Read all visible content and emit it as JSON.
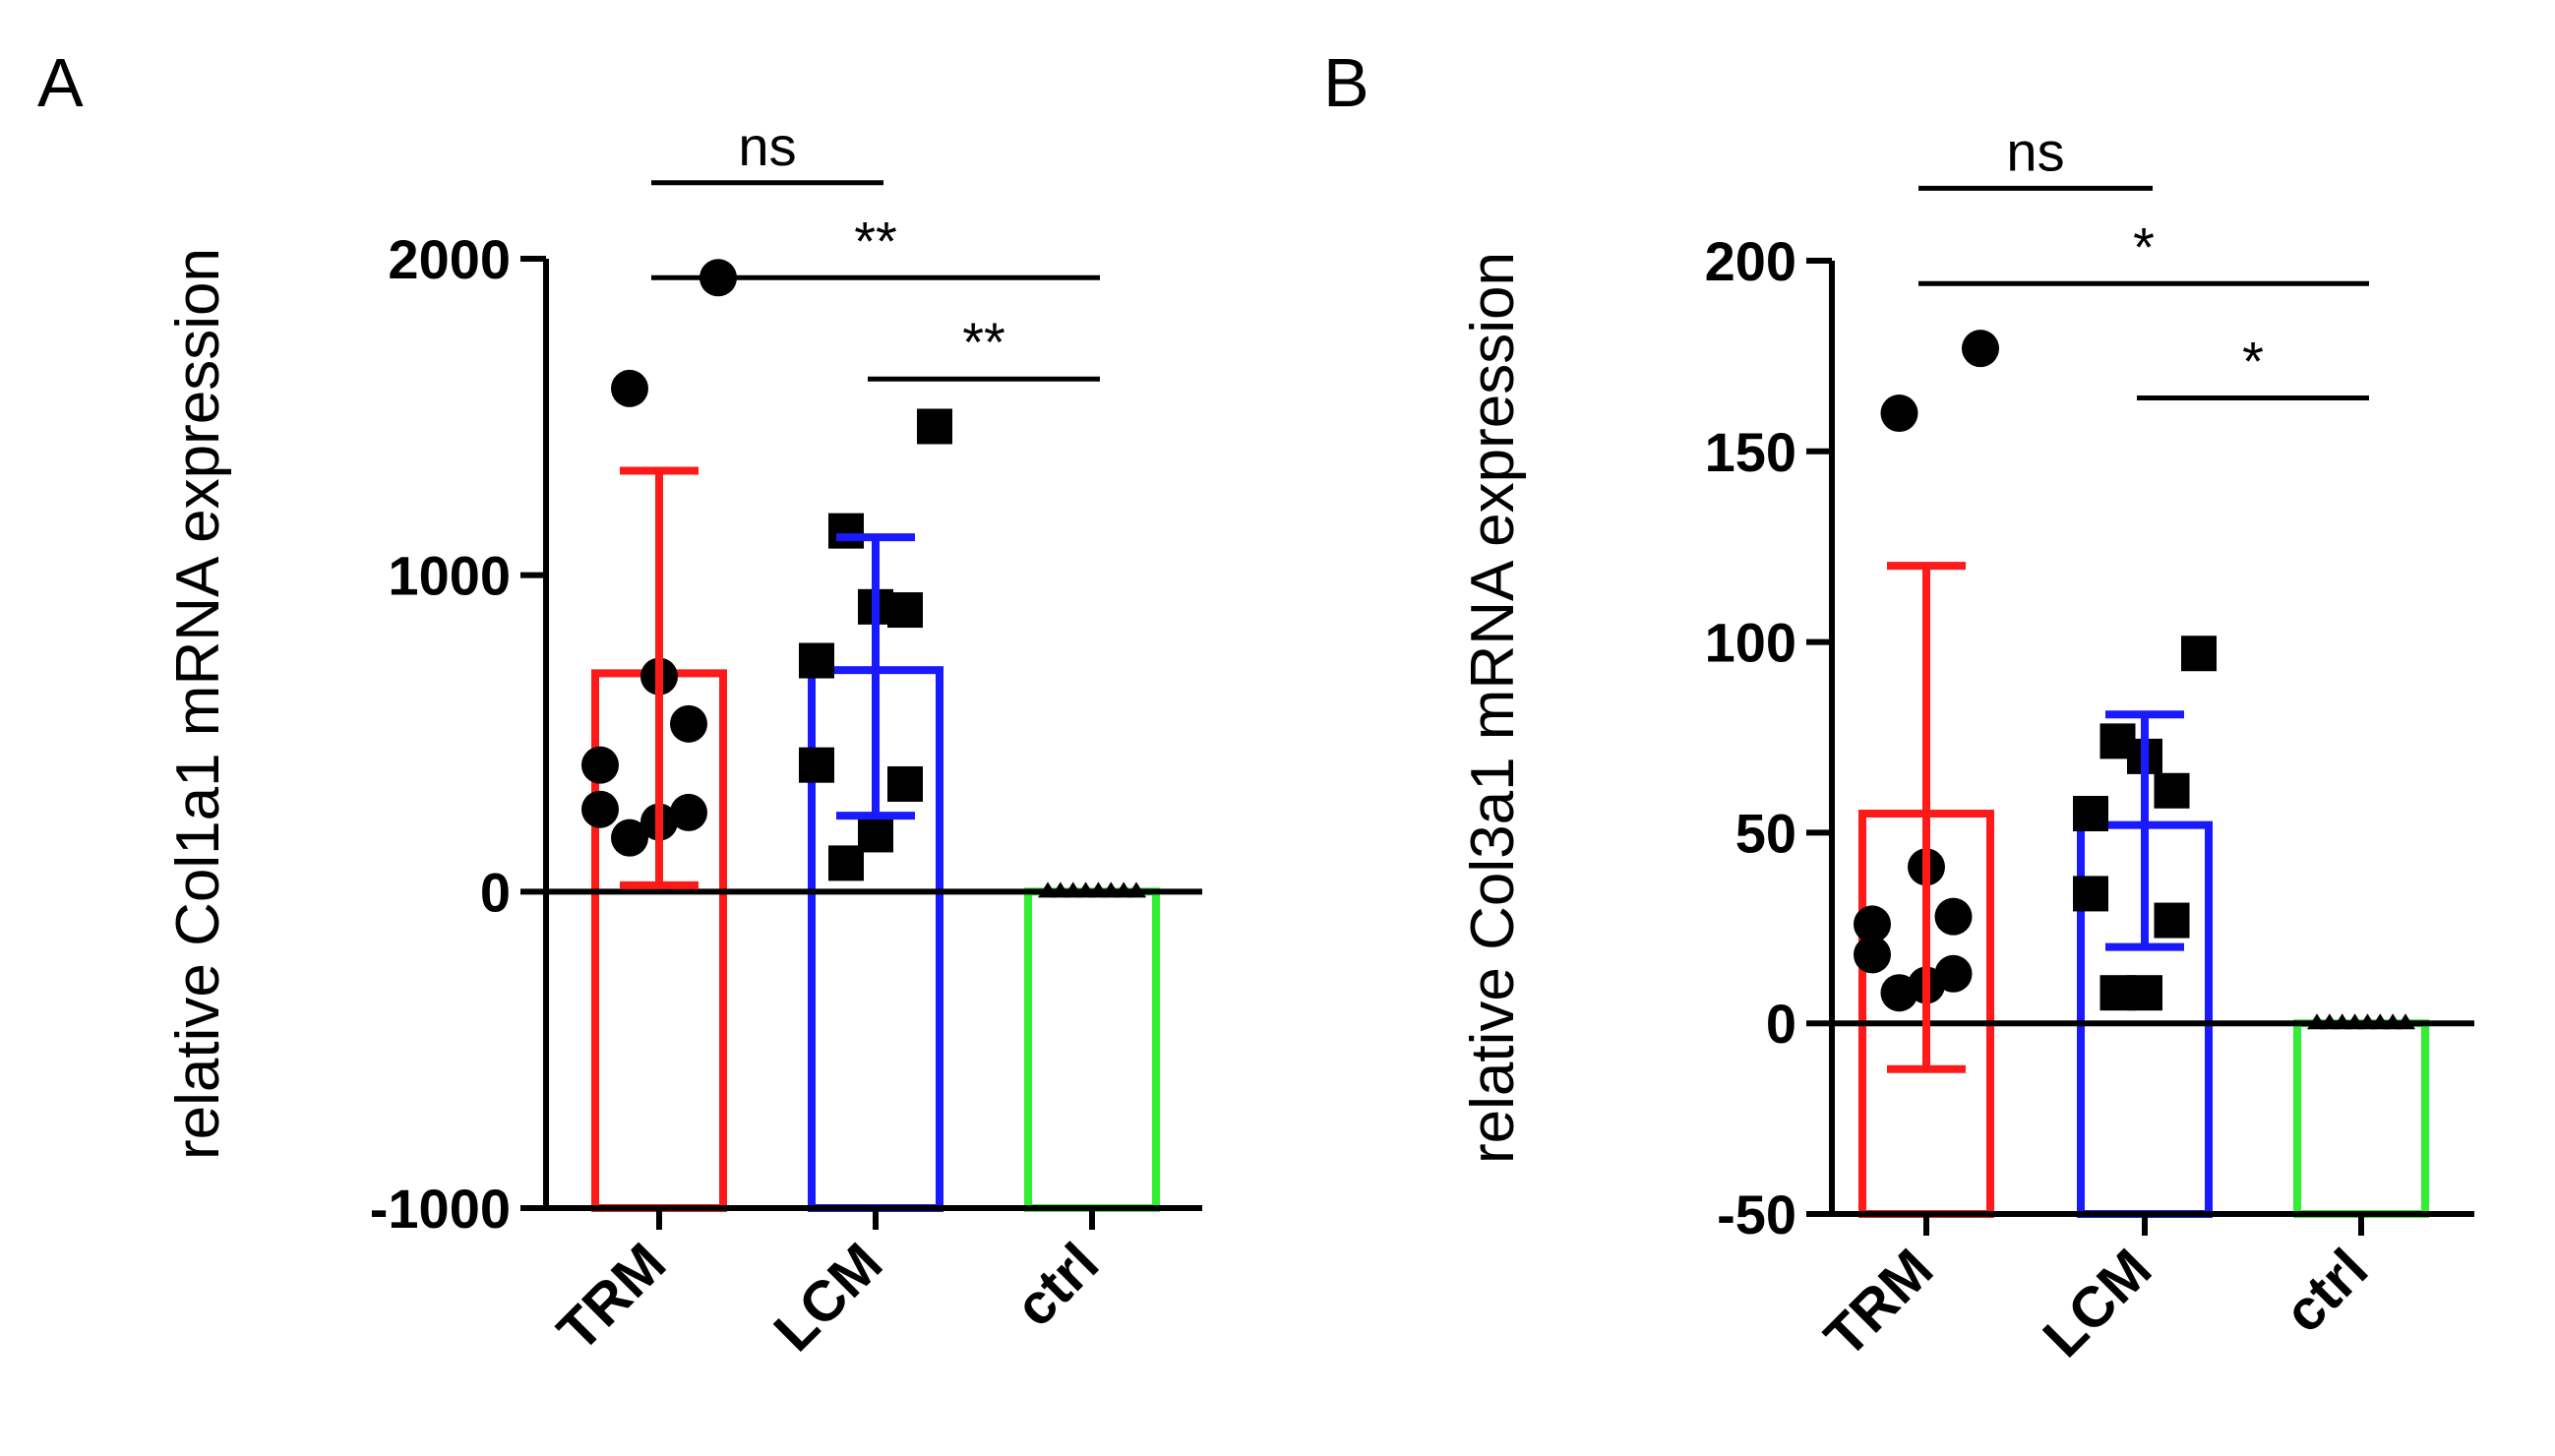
{
  "chart_data": [
    {
      "panel": "A",
      "type": "bar",
      "ylabel": "relative Col1a1 mRNA expression",
      "ylim": [
        -1000,
        2000
      ],
      "yticks": [
        -1000,
        0,
        1000,
        2000
      ],
      "categories": [
        "TRM",
        "LCM",
        "ctrl"
      ],
      "colors": [
        "#ff1a1a",
        "#1a1aff",
        "#33ee33"
      ],
      "means": [
        690,
        700,
        0
      ],
      "sd_upper": [
        1330,
        1120,
        0
      ],
      "sd_lower": [
        20,
        240,
        0
      ],
      "points": [
        {
          "group": 0,
          "marker": "circle",
          "values": [
            1940,
            1590,
            680,
            530,
            400,
            260,
            250,
            220,
            170
          ]
        },
        {
          "group": 1,
          "marker": "square",
          "values": [
            1470,
            1140,
            900,
            890,
            730,
            400,
            340,
            180,
            90
          ]
        },
        {
          "group": 2,
          "marker": "triangle",
          "values": [
            0,
            0,
            0,
            0,
            0,
            0,
            0,
            0
          ]
        }
      ],
      "significance": [
        {
          "from": 0,
          "to": 1,
          "label": "ns",
          "y": 2240
        },
        {
          "from": 0,
          "to": 2,
          "label": "**",
          "y": 1940
        },
        {
          "from": 1,
          "to": 2,
          "label": "**",
          "y": 1620
        }
      ]
    },
    {
      "panel": "B",
      "type": "bar",
      "ylabel": "relative Col3a1 mRNA expression",
      "ylim": [
        -50,
        200
      ],
      "yticks": [
        -50,
        0,
        50,
        100,
        150,
        200
      ],
      "categories": [
        "TRM",
        "LCM",
        "ctrl"
      ],
      "colors": [
        "#ff1a1a",
        "#1a1aff",
        "#33ee33"
      ],
      "means": [
        55,
        52,
        0
      ],
      "sd_upper": [
        120,
        81,
        0
      ],
      "sd_lower": [
        -12,
        20,
        0
      ],
      "points": [
        {
          "group": 0,
          "marker": "circle",
          "values": [
            177,
            160,
            41,
            28,
            26,
            18,
            13,
            10,
            8
          ]
        },
        {
          "group": 1,
          "marker": "square",
          "values": [
            97,
            74,
            70,
            61,
            55,
            34,
            27,
            8,
            8
          ]
        },
        {
          "group": 2,
          "marker": "triangle",
          "values": [
            0,
            0,
            0,
            0,
            0,
            0,
            0,
            0
          ]
        }
      ],
      "significance": [
        {
          "from": 0,
          "to": 1,
          "label": "ns",
          "y": 219
        },
        {
          "from": 0,
          "to": 2,
          "label": "*",
          "y": 194
        },
        {
          "from": 1,
          "to": 2,
          "label": "*",
          "y": 164
        }
      ]
    }
  ]
}
